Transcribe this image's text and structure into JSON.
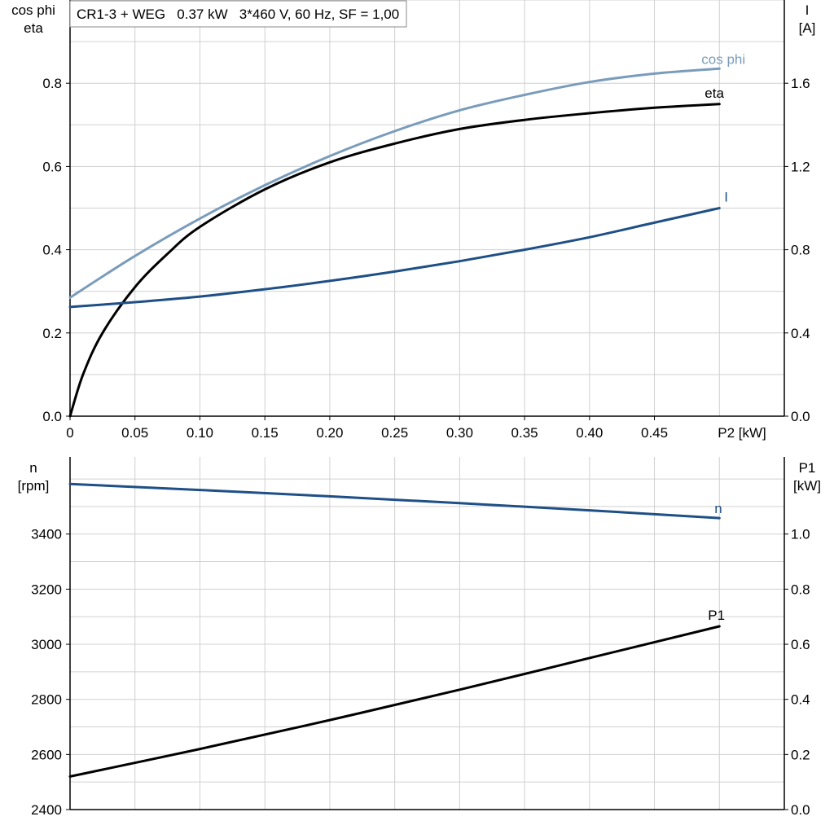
{
  "chart_data": [
    {
      "type": "line",
      "title": "CR1-3 + WEG   0.37 kW   3*460 V, 60 Hz, SF = 1,00",
      "xlabel": "P2 [kW]",
      "x_ticks": [
        "0",
        "0.05",
        "0.10",
        "0.15",
        "0.20",
        "0.25",
        "0.30",
        "0.35",
        "0.40",
        "0.45"
      ],
      "xlim": [
        0,
        0.55
      ],
      "left_axis": {
        "label_lines": [
          "cos phi",
          "eta"
        ],
        "range": [
          0,
          1.0
        ],
        "ticks": [
          "0.0",
          "0.2",
          "0.4",
          "0.6",
          "0.8"
        ]
      },
      "right_axis": {
        "label_lines": [
          "I",
          "[A]"
        ],
        "range": [
          0,
          2.0
        ],
        "ticks": [
          "0.0",
          "0.4",
          "0.8",
          "1.2",
          "1.6"
        ]
      },
      "grid": true,
      "series": [
        {
          "name": "cos phi",
          "axis": "left",
          "color": "#7a9cbb",
          "x": [
            0,
            0.05,
            0.1,
            0.15,
            0.2,
            0.25,
            0.3,
            0.35,
            0.4,
            0.45,
            0.5
          ],
          "y": [
            0.285,
            0.385,
            0.475,
            0.555,
            0.625,
            0.685,
            0.735,
            0.772,
            0.803,
            0.823,
            0.835
          ]
        },
        {
          "name": "eta",
          "axis": "left",
          "color": "#000000",
          "x": [
            0,
            0.01,
            0.025,
            0.05,
            0.075,
            0.1,
            0.15,
            0.2,
            0.25,
            0.3,
            0.35,
            0.4,
            0.45,
            0.5
          ],
          "y": [
            0.0,
            0.1,
            0.2,
            0.31,
            0.39,
            0.455,
            0.545,
            0.61,
            0.655,
            0.69,
            0.712,
            0.728,
            0.741,
            0.75
          ]
        },
        {
          "name": "I",
          "axis": "right",
          "color": "#1e4f86",
          "x": [
            0,
            0.05,
            0.1,
            0.15,
            0.2,
            0.25,
            0.3,
            0.35,
            0.4,
            0.45,
            0.5
          ],
          "y": [
            0.525,
            0.548,
            0.575,
            0.61,
            0.65,
            0.695,
            0.745,
            0.8,
            0.86,
            0.93,
            1.0
          ]
        }
      ]
    },
    {
      "type": "line",
      "xlim": [
        0,
        0.55
      ],
      "left_axis": {
        "label_lines": [
          "n",
          "[rpm]"
        ],
        "range": [
          2400,
          3680
        ],
        "ticks": [
          "2400",
          "2600",
          "2800",
          "3000",
          "3200",
          "3400"
        ]
      },
      "right_axis": {
        "label_lines": [
          "P1",
          "[kW]"
        ],
        "range": [
          0,
          1.28
        ],
        "ticks": [
          "0.0",
          "0.2",
          "0.4",
          "0.6",
          "0.8",
          "1.0"
        ]
      },
      "grid": true,
      "series": [
        {
          "name": "n",
          "axis": "left",
          "color": "#1e4f86",
          "x": [
            0,
            0.1,
            0.2,
            0.3,
            0.4,
            0.5
          ],
          "y": [
            3582,
            3560,
            3537,
            3512,
            3486,
            3458
          ]
        },
        {
          "name": "P1",
          "axis": "right",
          "color": "#000000",
          "x": [
            0,
            0.1,
            0.2,
            0.3,
            0.4,
            0.5
          ],
          "y": [
            0.12,
            0.22,
            0.325,
            0.435,
            0.55,
            0.665
          ]
        }
      ]
    }
  ]
}
